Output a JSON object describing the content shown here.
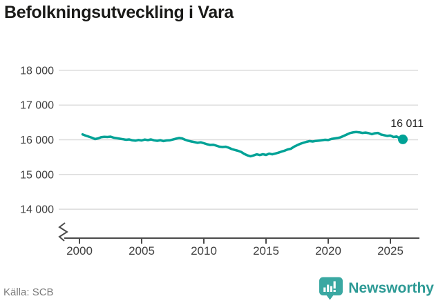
{
  "title": "Befolkningsutveckling i Vara",
  "source": "Källa: SCB",
  "branding": {
    "name": "Newsworthy",
    "icon": "newsworthy-speech-bubble-bar-chart-icon",
    "text_color": "#2d9a95",
    "icon_color": "#3aa8a2"
  },
  "chart_data": {
    "type": "line",
    "title": "Befolkningsutveckling i Vara",
    "xlabel": "",
    "ylabel": "",
    "x_start": 2000,
    "x_step": 0.25,
    "x_unit": "year (quarterly series, 2000–2025)",
    "values": [
      16155,
      16120,
      16090,
      16060,
      16020,
      16040,
      16075,
      16085,
      16080,
      16090,
      16060,
      16045,
      16030,
      16015,
      16000,
      16010,
      15985,
      15975,
      15995,
      15980,
      16005,
      15990,
      16010,
      15985,
      15970,
      15988,
      15962,
      15980,
      15985,
      16005,
      16030,
      16052,
      16040,
      16000,
      15972,
      15950,
      15932,
      15912,
      15926,
      15900,
      15872,
      15850,
      15856,
      15832,
      15802,
      15792,
      15800,
      15772,
      15732,
      15705,
      15682,
      15650,
      15592,
      15550,
      15525,
      15548,
      15580,
      15558,
      15585,
      15562,
      15600,
      15580,
      15605,
      15628,
      15660,
      15685,
      15722,
      15742,
      15800,
      15842,
      15882,
      15912,
      15940,
      15962,
      15950,
      15966,
      15976,
      15988,
      16000,
      15992,
      16022,
      16038,
      16052,
      16072,
      16112,
      16152,
      16192,
      16212,
      16222,
      16215,
      16196,
      16206,
      16190,
      16162,
      16186,
      16196,
      16152,
      16132,
      16112,
      16122,
      16080,
      16096,
      16040,
      16011
    ],
    "last_value": 16011,
    "last_value_label": "16 011",
    "yticks": [
      14000,
      15000,
      16000,
      17000,
      18000
    ],
    "ytick_labels": [
      "14 000",
      "15 000",
      "16 000",
      "17 000",
      "18 000"
    ],
    "xticks": [
      2000,
      2005,
      2010,
      2015,
      2020,
      2025
    ],
    "xtick_labels": [
      "2000",
      "2005",
      "2010",
      "2015",
      "2020",
      "2025"
    ],
    "ylim": [
      13600,
      18200
    ],
    "axis_break": true,
    "grid": true,
    "legend": "none",
    "line_color": "#00a296",
    "grid_color": "#dcdcdc",
    "axis_color": "#4a4a4a",
    "axis_text_color": "#3f3f3f"
  }
}
